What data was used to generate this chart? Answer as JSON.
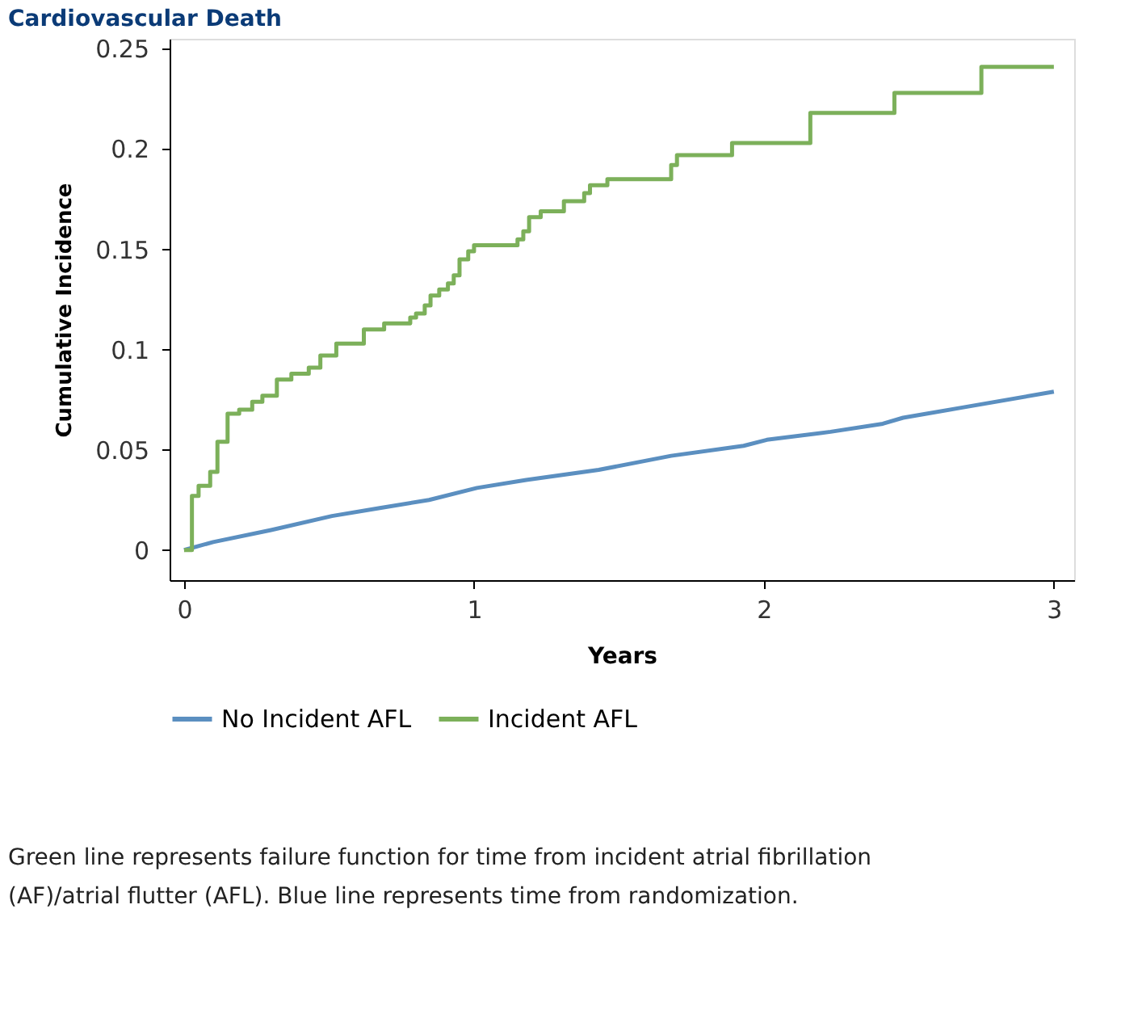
{
  "chart_data": {
    "type": "step",
    "title": "Cardiovascular Death",
    "xlabel": "Years",
    "ylabel": "Cumulative Incidence",
    "xlim": [
      -0.05,
      3.07
    ],
    "ylim": [
      -0.015,
      0.255
    ],
    "xticks": [
      0,
      1,
      2,
      3
    ],
    "yticks": [
      0,
      0.05,
      0.1,
      0.15,
      0.2,
      0.25
    ],
    "grid": false,
    "legend": "bottom",
    "series": [
      {
        "name": "No Incident AFL",
        "color": "#5b8fc0",
        "type": "line",
        "x": [
          0,
          0.1,
          0.3,
          0.51,
          0.675,
          0.845,
          1.01,
          1.18,
          1.43,
          1.68,
          1.93,
          2.01,
          2.23,
          2.41,
          2.48,
          2.68,
          3.0
        ],
        "values": [
          0,
          0.004,
          0.01,
          0.017,
          0.021,
          0.025,
          0.031,
          0.035,
          0.04,
          0.047,
          0.052,
          0.055,
          0.059,
          0.063,
          0.066,
          0.071,
          0.079
        ]
      },
      {
        "name": "Incident AFL",
        "color": "#7cb05a",
        "type": "step",
        "x": [
          0,
          0.027,
          0.05,
          0.09,
          0.115,
          0.15,
          0.19,
          0.235,
          0.27,
          0.32,
          0.37,
          0.43,
          0.47,
          0.525,
          0.62,
          0.69,
          0.78,
          0.8,
          0.83,
          0.85,
          0.88,
          0.91,
          0.93,
          0.95,
          0.98,
          1.0,
          1.15,
          1.17,
          1.19,
          1.23,
          1.31,
          1.38,
          1.4,
          1.46,
          1.68,
          1.7,
          1.89,
          2.16,
          2.45,
          2.75,
          3.0
        ],
        "values": [
          0,
          0.027,
          0.032,
          0.039,
          0.054,
          0.068,
          0.07,
          0.074,
          0.077,
          0.085,
          0.088,
          0.091,
          0.097,
          0.103,
          0.11,
          0.113,
          0.116,
          0.118,
          0.122,
          0.127,
          0.13,
          0.133,
          0.137,
          0.145,
          0.149,
          0.152,
          0.155,
          0.159,
          0.166,
          0.169,
          0.174,
          0.178,
          0.182,
          0.185,
          0.192,
          0.197,
          0.203,
          0.218,
          0.228,
          0.241,
          0.241
        ]
      }
    ],
    "annotations": [
      "Green line represents failure function for time from incident atrial fibrillation (AF)/atrial flutter (AFL). Blue line represents time from randomization."
    ]
  }
}
